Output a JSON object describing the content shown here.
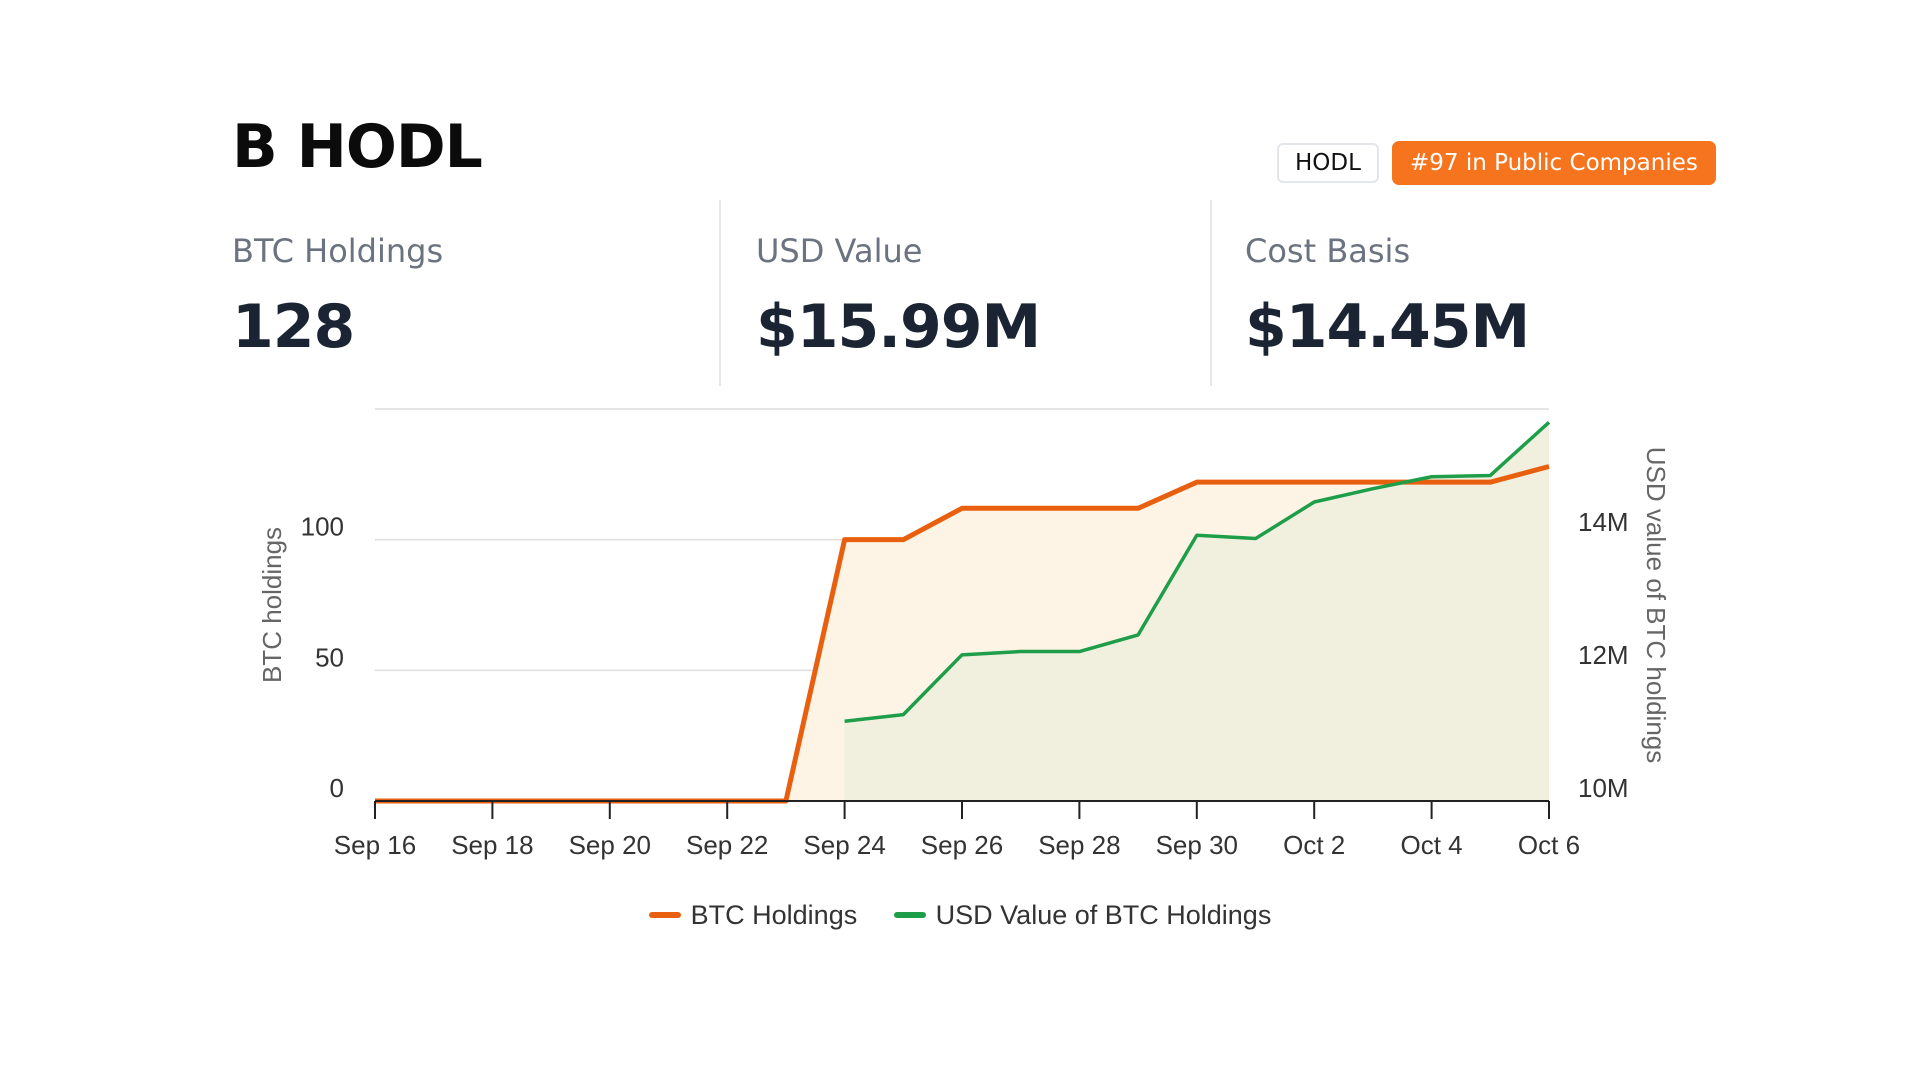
{
  "header": {
    "title": "B HODL",
    "ticker": "HODL",
    "rank": "#97 in Public Companies"
  },
  "stats": [
    {
      "label": "BTC Holdings",
      "value": "128"
    },
    {
      "label": "USD Value",
      "value": "$15.99M"
    },
    {
      "label": "Cost Basis",
      "value": "$14.45M"
    }
  ],
  "colors": {
    "accent": "#f7741e",
    "btc_line": "#e8600f",
    "btc_fill": "#fdf4e6",
    "usd_line": "#1f9e4a",
    "usd_fill": "#f1f0df"
  },
  "chart_data": {
    "type": "line",
    "x": [
      "2024-09-16",
      "2024-09-17",
      "2024-09-18",
      "2024-09-19",
      "2024-09-20",
      "2024-09-21",
      "2024-09-22",
      "2024-09-23",
      "2024-09-24",
      "2024-09-25",
      "2024-09-26",
      "2024-09-27",
      "2024-09-28",
      "2024-09-29",
      "2024-09-30",
      "2024-10-01",
      "2024-10-02",
      "2024-10-03",
      "2024-10-04",
      "2024-10-05",
      "2024-10-06"
    ],
    "x_tick_labels": [
      "Sep 16",
      "Sep 18",
      "Sep 20",
      "Sep 22",
      "Sep 24",
      "Sep 26",
      "Sep 28",
      "Sep 30",
      "Oct 2",
      "Oct 4",
      "Oct 6"
    ],
    "series": [
      {
        "name": "BTC Holdings",
        "axis": "left",
        "points": [
          [
            "2024-09-16",
            0
          ],
          [
            "2024-09-23",
            0
          ],
          [
            "2024-09-24",
            100
          ],
          [
            "2024-09-25",
            100
          ],
          [
            "2024-09-26",
            112
          ],
          [
            "2024-09-27",
            112
          ],
          [
            "2024-09-28",
            112
          ],
          [
            "2024-09-29",
            112
          ],
          [
            "2024-09-30",
            122
          ],
          [
            "2024-10-01",
            122
          ],
          [
            "2024-10-02",
            122
          ],
          [
            "2024-10-03",
            122
          ],
          [
            "2024-10-04",
            122
          ],
          [
            "2024-10-05",
            122
          ],
          [
            "2024-10-06",
            128
          ]
        ]
      },
      {
        "name": "USD Value of BTC Holdings",
        "axis": "right",
        "points": [
          [
            "2024-09-24",
            11.2
          ],
          [
            "2024-09-25",
            11.3
          ],
          [
            "2024-09-26",
            12.2
          ],
          [
            "2024-09-27",
            12.25
          ],
          [
            "2024-09-28",
            12.25
          ],
          [
            "2024-09-29",
            12.5
          ],
          [
            "2024-09-30",
            14.0
          ],
          [
            "2024-10-01",
            13.95
          ],
          [
            "2024-10-02",
            14.5
          ],
          [
            "2024-10-03",
            14.7
          ],
          [
            "2024-10-04",
            14.88
          ],
          [
            "2024-10-05",
            14.9
          ],
          [
            "2024-10-06",
            15.7
          ]
        ]
      }
    ],
    "y_left": {
      "label": "BTC holdings",
      "ticks": [
        0,
        50,
        100
      ],
      "range": [
        0,
        150
      ]
    },
    "y_right": {
      "label": "USD value of BTC holdings",
      "ticks": [
        10,
        12,
        14
      ],
      "tick_labels": [
        "10M",
        "12M",
        "14M"
      ],
      "range": [
        10,
        15.9
      ]
    },
    "grid": true,
    "legend_position": "bottom"
  }
}
